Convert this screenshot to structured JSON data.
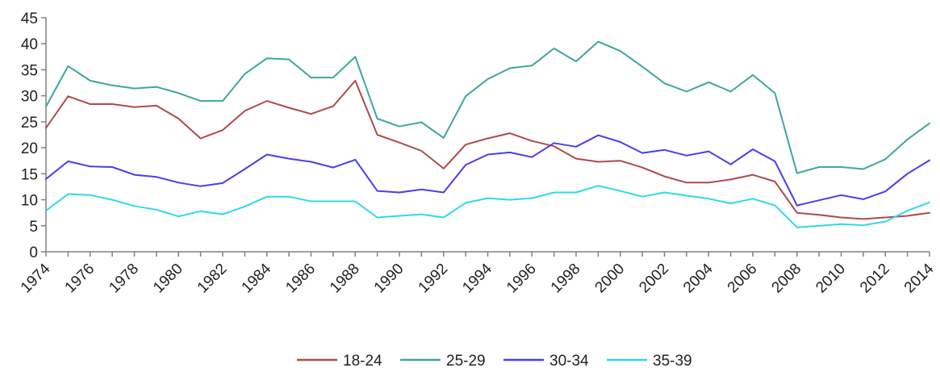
{
  "chart_data": {
    "type": "line",
    "title": "",
    "xlabel": "",
    "ylabel": "",
    "ylim": [
      0,
      45
    ],
    "yticks": [
      0,
      5,
      10,
      15,
      20,
      25,
      30,
      35,
      40,
      45
    ],
    "xlim": [
      1974,
      2014
    ],
    "xticks": [
      1974,
      1976,
      1978,
      1980,
      1982,
      1984,
      1986,
      1988,
      1990,
      1992,
      1994,
      1996,
      1998,
      2000,
      2002,
      2004,
      2006,
      2008,
      2010,
      2012,
      2014
    ],
    "grid": false,
    "legend_position": "bottom",
    "x": [
      1974,
      1975,
      1976,
      1977,
      1978,
      1979,
      1980,
      1981,
      1982,
      1983,
      1984,
      1985,
      1986,
      1987,
      1988,
      1989,
      1990,
      1991,
      1992,
      1993,
      1994,
      1995,
      1996,
      1997,
      1998,
      1999,
      2000,
      2001,
      2002,
      2003,
      2004,
      2005,
      2006,
      2007,
      2008,
      2009,
      2010,
      2011,
      2012,
      2013,
      2014
    ],
    "series": [
      {
        "name": "18-24",
        "color": "#B04A4A",
        "values": [
          23.8,
          29.9,
          28.4,
          28.4,
          27.8,
          28.1,
          25.6,
          21.8,
          23.4,
          27.1,
          29.0,
          27.7,
          26.5,
          28.0,
          32.9,
          22.5,
          21.0,
          19.4,
          16.0,
          20.6,
          21.8,
          22.8,
          21.3,
          20.3,
          17.9,
          17.3,
          17.5,
          16.2,
          14.5,
          13.3,
          13.3,
          13.9,
          14.8,
          13.5,
          7.5,
          7.1,
          6.6,
          6.3,
          6.6,
          6.9,
          7.5
        ]
      },
      {
        "name": "25-29",
        "color": "#3EA69E",
        "values": [
          27.9,
          35.7,
          32.9,
          32.0,
          31.4,
          31.7,
          30.5,
          29.0,
          29.0,
          34.2,
          37.2,
          37.0,
          33.5,
          33.5,
          37.5,
          25.6,
          24.1,
          24.9,
          21.9,
          29.9,
          33.2,
          35.3,
          35.8,
          39.1,
          36.6,
          40.4,
          38.6,
          35.6,
          32.4,
          30.8,
          32.6,
          30.8,
          34.0,
          30.5,
          15.1,
          16.3,
          16.3,
          15.9,
          17.8,
          21.6,
          24.7
        ]
      },
      {
        "name": "30-34",
        "color": "#4A3DF0",
        "values": [
          14.0,
          17.4,
          16.4,
          16.3,
          14.8,
          14.4,
          13.3,
          12.6,
          13.2,
          15.9,
          18.7,
          17.9,
          17.3,
          16.2,
          17.7,
          11.7,
          11.4,
          12.0,
          11.4,
          16.7,
          18.7,
          19.1,
          18.2,
          20.9,
          20.2,
          22.4,
          21.1,
          19.0,
          19.6,
          18.5,
          19.3,
          16.8,
          19.7,
          17.4,
          8.9,
          9.9,
          10.9,
          10.1,
          11.6,
          15.0,
          17.6
        ]
      },
      {
        "name": "35-39",
        "color": "#2ED8F0",
        "values": [
          7.9,
          11.1,
          10.9,
          10.0,
          8.8,
          8.1,
          6.8,
          7.8,
          7.2,
          8.7,
          10.6,
          10.6,
          9.7,
          9.7,
          9.7,
          6.6,
          6.9,
          7.2,
          6.6,
          9.4,
          10.3,
          10.0,
          10.3,
          11.4,
          11.4,
          12.7,
          11.7,
          10.6,
          11.4,
          10.8,
          10.2,
          9.3,
          10.2,
          8.9,
          4.7,
          5.0,
          5.3,
          5.1,
          5.8,
          7.9,
          9.5
        ]
      }
    ]
  }
}
